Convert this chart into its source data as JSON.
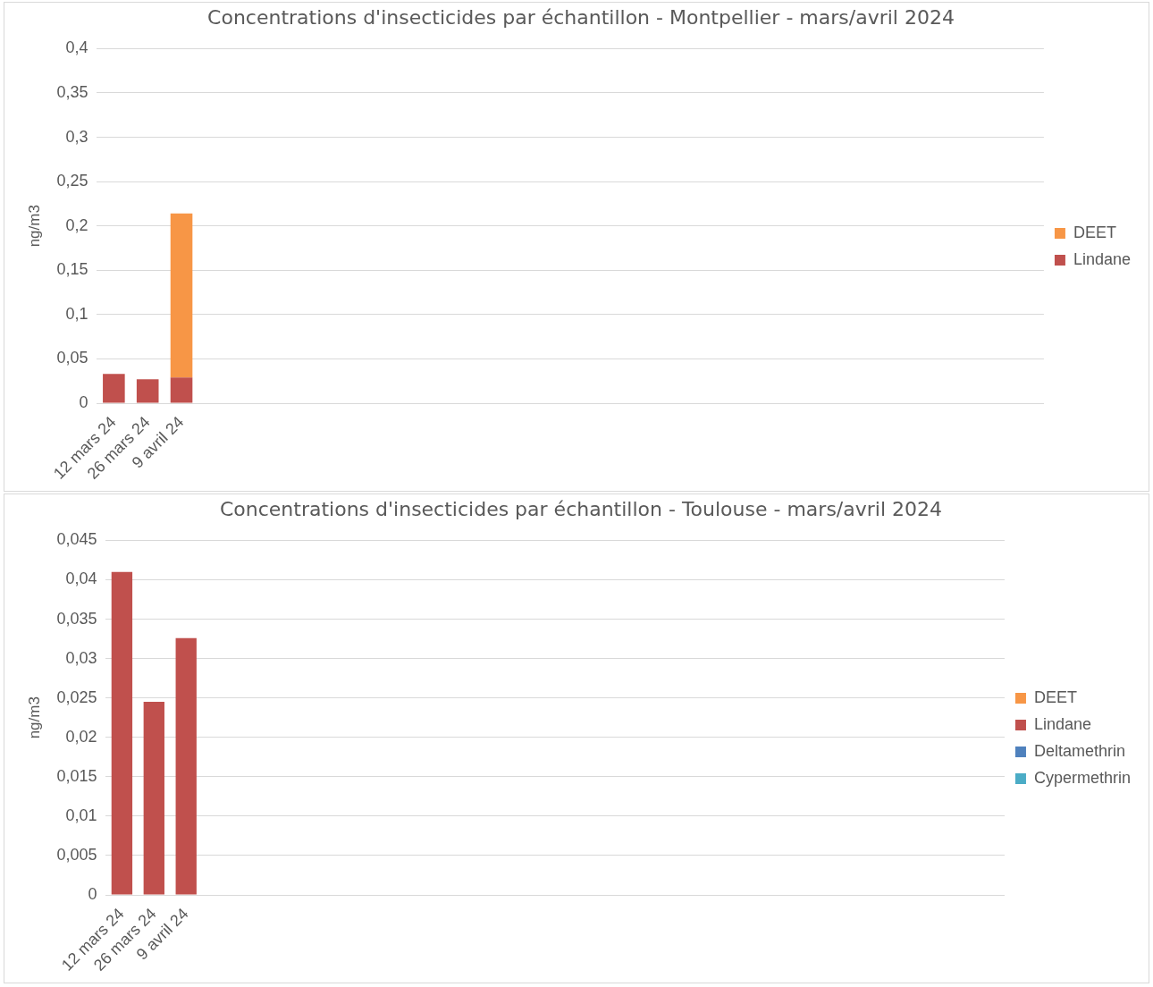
{
  "chart_data": [
    {
      "type": "bar",
      "title": "Concentrations d'insecticides par échantillon - Montpellier - mars/avril 2024",
      "ylabel": "ng/m3",
      "stacked": true,
      "legend": "right",
      "grid": "y",
      "categories": [
        "12 mars 24",
        "26 mars 24",
        "9 avril 24",
        null,
        null,
        null,
        null,
        null,
        null,
        null,
        null,
        null,
        null,
        null,
        null,
        null,
        null,
        null,
        null,
        null,
        null,
        null,
        null,
        null,
        null,
        null,
        null,
        null
      ],
      "series": [
        {
          "name": "Lindane",
          "color": "#c0504d",
          "values": [
            0.033,
            0.027,
            0.029,
            null,
            null,
            null,
            null,
            null,
            null,
            null,
            null,
            null,
            null,
            null,
            null,
            null,
            null,
            null,
            null,
            null,
            null,
            null,
            null,
            null,
            null,
            null,
            null,
            null
          ]
        },
        {
          "name": "DEET",
          "color": "#f79646",
          "values": [
            null,
            null,
            0.185,
            null,
            null,
            null,
            null,
            null,
            null,
            null,
            null,
            null,
            null,
            null,
            null,
            null,
            null,
            null,
            null,
            null,
            null,
            null,
            null,
            null,
            null,
            null,
            null,
            null
          ]
        }
      ],
      "ylim": [
        0,
        0.4
      ],
      "yticks": [
        0,
        {
          "value": 0.05,
          "label": "0,05"
        },
        {
          "value": 0.1,
          "label": "0,1"
        },
        {
          "value": 0.15,
          "label": "0,15"
        },
        {
          "value": 0.2,
          "label": "0,2"
        },
        {
          "value": 0.25,
          "label": "0,25"
        },
        {
          "value": 0.3,
          "label": "0,3"
        },
        {
          "value": 0.35,
          "label": "0,35"
        },
        {
          "value": 0.4,
          "label": "0,4"
        }
      ]
    },
    {
      "type": "bar",
      "title": "Concentrations d'insecticides par échantillon - Toulouse - mars/avril 2024",
      "ylabel": "ng/m3",
      "stacked": true,
      "legend": "right",
      "grid": "y",
      "categories": [
        "12 mars 24",
        "26 mars 24",
        "9 avril 24",
        null,
        null,
        null,
        null,
        null,
        null,
        null,
        null,
        null,
        null,
        null,
        null,
        null,
        null,
        null,
        null,
        null,
        null,
        null,
        null,
        null,
        null,
        null,
        null,
        null
      ],
      "series": [
        {
          "name": "Cypermethrin",
          "color": "#4bacc6",
          "values": [
            null,
            null,
            null,
            null,
            null,
            null,
            null,
            null,
            null,
            null,
            null,
            null,
            null,
            null,
            null,
            null,
            null,
            null,
            null,
            null,
            null,
            null,
            null,
            null,
            null,
            null,
            null,
            null
          ]
        },
        {
          "name": "Deltamethrin",
          "color": "#4f81bd",
          "values": [
            null,
            null,
            null,
            null,
            null,
            null,
            null,
            null,
            null,
            null,
            null,
            null,
            null,
            null,
            null,
            null,
            null,
            null,
            null,
            null,
            null,
            null,
            null,
            null,
            null,
            null,
            null,
            null
          ]
        },
        {
          "name": "Lindane",
          "color": "#c0504d",
          "values": [
            0.041,
            0.0245,
            0.0326,
            null,
            null,
            null,
            null,
            null,
            null,
            null,
            null,
            null,
            null,
            null,
            null,
            null,
            null,
            null,
            null,
            null,
            null,
            null,
            null,
            null,
            null,
            null,
            null,
            null
          ]
        },
        {
          "name": "DEET",
          "color": "#f79646",
          "values": [
            null,
            null,
            null,
            null,
            null,
            null,
            null,
            null,
            null,
            null,
            null,
            null,
            null,
            null,
            null,
            null,
            null,
            null,
            null,
            null,
            null,
            null,
            null,
            null,
            null,
            null,
            null,
            null
          ]
        }
      ],
      "ylim": [
        0,
        0.045
      ],
      "yticks": [
        0,
        {
          "value": 0.005,
          "label": "0,005"
        },
        {
          "value": 0.01,
          "label": "0,01"
        },
        {
          "value": 0.015,
          "label": "0,015"
        },
        {
          "value": 0.02,
          "label": "0,02"
        },
        {
          "value": 0.025,
          "label": "0,025"
        },
        {
          "value": 0.03,
          "label": "0,03"
        },
        {
          "value": 0.035,
          "label": "0,035"
        },
        {
          "value": 0.04,
          "label": "0,04"
        },
        {
          "value": 0.045,
          "label": "0,045"
        }
      ]
    }
  ]
}
